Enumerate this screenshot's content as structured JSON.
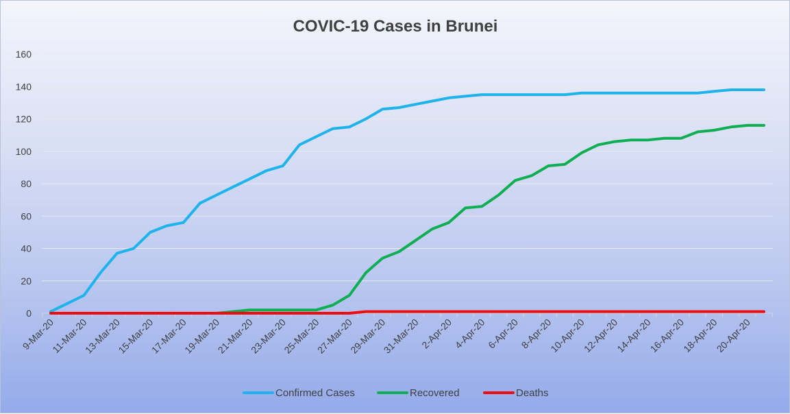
{
  "chart_data": {
    "type": "line",
    "title": "COVIC-19 Cases in Brunei",
    "xlabel": "",
    "ylabel": "",
    "ylim": [
      0,
      160
    ],
    "yticks": [
      "0",
      "20",
      "40",
      "60",
      "80",
      "100",
      "120",
      "140",
      "160"
    ],
    "grid": "horizontal",
    "legend_position": "bottom",
    "x": [
      "9-Mar-20",
      "10-Mar-20",
      "11-Mar-20",
      "12-Mar-20",
      "13-Mar-20",
      "14-Mar-20",
      "15-Mar-20",
      "16-Mar-20",
      "17-Mar-20",
      "18-Mar-20",
      "19-Mar-20",
      "20-Mar-20",
      "21-Mar-20",
      "22-Mar-20",
      "23-Mar-20",
      "24-Mar-20",
      "25-Mar-20",
      "26-Mar-20",
      "27-Mar-20",
      "28-Mar-20",
      "29-Mar-20",
      "30-Mar-20",
      "31-Mar-20",
      "1-Apr-20",
      "2-Apr-20",
      "3-Apr-20",
      "4-Apr-20",
      "5-Apr-20",
      "6-Apr-20",
      "7-Apr-20",
      "8-Apr-20",
      "9-Apr-20",
      "10-Apr-20",
      "11-Apr-20",
      "12-Apr-20",
      "13-Apr-20",
      "14-Apr-20",
      "15-Apr-20",
      "16-Apr-20",
      "17-Apr-20",
      "18-Apr-20",
      "19-Apr-20",
      "20-Apr-20",
      "21-Apr-20"
    ],
    "xtick_labels": [
      "9-Mar-20",
      "11-Mar-20",
      "13-Mar-20",
      "15-Mar-20",
      "17-Mar-20",
      "19-Mar-20",
      "21-Mar-20",
      "23-Mar-20",
      "25-Mar-20",
      "27-Mar-20",
      "29-Mar-20",
      "31-Mar-20",
      "2-Apr-20",
      "4-Apr-20",
      "6-Apr-20",
      "8-Apr-20",
      "10-Apr-20",
      "12-Apr-20",
      "14-Apr-20",
      "16-Apr-20",
      "18-Apr-20",
      "20-Apr-20"
    ],
    "series": [
      {
        "name": "Confirmed Cases",
        "color": "#1fb3ec",
        "values": [
          1,
          6,
          11,
          25,
          37,
          40,
          50,
          54,
          56,
          68,
          73,
          78,
          83,
          88,
          91,
          104,
          109,
          114,
          115,
          120,
          126,
          127,
          129,
          131,
          133,
          134,
          135,
          135,
          135,
          135,
          135,
          135,
          136,
          136,
          136,
          136,
          136,
          136,
          136,
          136,
          137,
          138,
          138,
          138
        ]
      },
      {
        "name": "Recovered",
        "color": "#0fae52",
        "values": [
          0,
          0,
          0,
          0,
          0,
          0,
          0,
          0,
          0,
          0,
          0,
          1,
          2,
          2,
          2,
          2,
          2,
          5,
          11,
          25,
          34,
          38,
          45,
          52,
          56,
          65,
          66,
          73,
          82,
          85,
          91,
          92,
          99,
          104,
          106,
          107,
          107,
          108,
          108,
          112,
          113,
          115,
          116,
          116
        ]
      },
      {
        "name": "Deaths",
        "color": "#ee0d0d",
        "values": [
          0,
          0,
          0,
          0,
          0,
          0,
          0,
          0,
          0,
          0,
          0,
          0,
          0,
          0,
          0,
          0,
          0,
          0,
          0,
          1,
          1,
          1,
          1,
          1,
          1,
          1,
          1,
          1,
          1,
          1,
          1,
          1,
          1,
          1,
          1,
          1,
          1,
          1,
          1,
          1,
          1,
          1,
          1,
          1
        ]
      }
    ]
  }
}
